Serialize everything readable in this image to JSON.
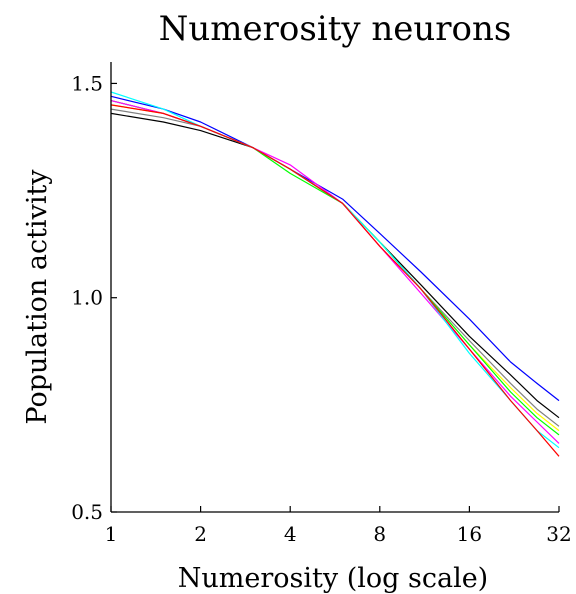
{
  "chart_data": {
    "type": "line",
    "title": "Numerosity neurons",
    "xlabel": "Numerosity (log scale)",
    "ylabel": "Population activity",
    "xscale": "log2",
    "xlim": [
      1,
      32
    ],
    "ylim": [
      0.5,
      1.55
    ],
    "x_ticks": [
      1,
      2,
      4,
      8,
      16,
      32
    ],
    "x_tick_labels": [
      "1",
      "2",
      "4",
      "8",
      "16",
      "32"
    ],
    "y_ticks": [
      0.5,
      1.0,
      1.5
    ],
    "y_tick_labels": [
      "0.5",
      "1.0",
      "1.5"
    ],
    "grid": false,
    "legend": "none",
    "x": [
      1,
      1.5,
      2,
      3,
      4,
      6,
      8,
      11,
      16,
      22,
      27,
      32
    ],
    "series": [
      {
        "color": "#0000ff",
        "values": [
          1.47,
          1.44,
          1.41,
          1.35,
          1.3,
          1.23,
          1.15,
          1.06,
          0.95,
          0.85,
          0.8,
          0.76
        ]
      },
      {
        "color": "#000000",
        "values": [
          1.43,
          1.41,
          1.39,
          1.35,
          1.3,
          1.22,
          1.13,
          1.03,
          0.91,
          0.82,
          0.76,
          0.72
        ]
      },
      {
        "color": "#808080",
        "values": [
          1.44,
          1.42,
          1.4,
          1.35,
          1.3,
          1.22,
          1.13,
          1.02,
          0.9,
          0.8,
          0.74,
          0.7
        ]
      },
      {
        "color": "#ffff00",
        "values": [
          1.45,
          1.43,
          1.4,
          1.35,
          1.3,
          1.22,
          1.13,
          1.02,
          0.89,
          0.79,
          0.73,
          0.69
        ]
      },
      {
        "color": "#00ff00",
        "values": [
          1.46,
          1.43,
          1.4,
          1.35,
          1.29,
          1.22,
          1.13,
          1.02,
          0.89,
          0.78,
          0.72,
          0.68
        ]
      },
      {
        "color": "#ff00ff",
        "values": [
          1.46,
          1.43,
          1.4,
          1.35,
          1.31,
          1.22,
          1.12,
          1.01,
          0.88,
          0.77,
          0.71,
          0.66
        ]
      },
      {
        "color": "#00ffff",
        "values": [
          1.48,
          1.44,
          1.4,
          1.35,
          1.3,
          1.22,
          1.13,
          1.02,
          0.87,
          0.76,
          0.69,
          0.65
        ]
      },
      {
        "color": "#ff0000",
        "values": [
          1.45,
          1.43,
          1.4,
          1.35,
          1.3,
          1.22,
          1.12,
          1.02,
          0.88,
          0.76,
          0.69,
          0.63
        ]
      }
    ]
  }
}
